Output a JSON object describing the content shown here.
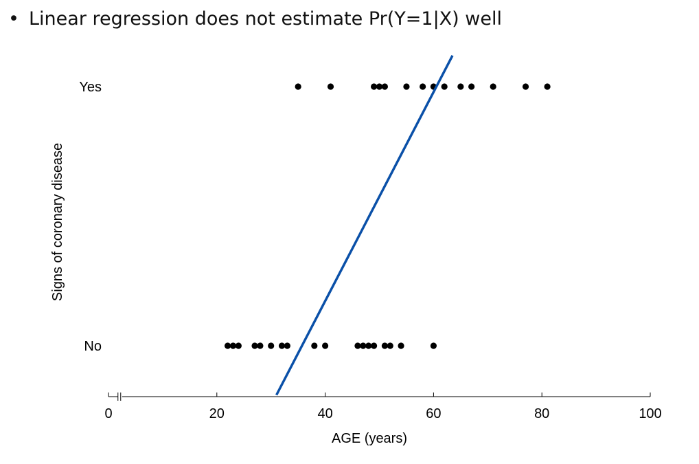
{
  "slide": {
    "bullet_glyph": "•",
    "bullet_text": "Linear regression does not estimate Pr(Y=1|X) well"
  },
  "colors": {
    "points": "#000000",
    "regression_line": "#0a50a8",
    "axis": "#000000"
  },
  "chart_data": {
    "type": "scatter",
    "title": "",
    "xlabel": "AGE (years)",
    "ylabel": "Signs of coronary disease",
    "xlim": [
      0,
      100
    ],
    "xticks": [
      0,
      20,
      40,
      60,
      80,
      100
    ],
    "ylim": [
      0,
      1
    ],
    "y_categories": [
      {
        "label": "No",
        "value": 0
      },
      {
        "label": "Yes",
        "value": 1
      }
    ],
    "axis_break_near": 2,
    "series": [
      {
        "name": "Yes",
        "y": 1,
        "x": [
          35,
          41,
          49,
          50,
          51,
          55,
          58,
          60,
          62,
          65,
          67,
          71,
          77,
          81
        ]
      },
      {
        "name": "No",
        "y": 0,
        "x": [
          22,
          23,
          24,
          27,
          28,
          30,
          32,
          33,
          38,
          40,
          46,
          47,
          48,
          49,
          51,
          52,
          54,
          60
        ]
      }
    ],
    "regression_line": {
      "name": "Linear regression fit",
      "x_start": 31,
      "y_start": -0.19,
      "x_end": 63.5,
      "y_end": 1.12
    }
  }
}
